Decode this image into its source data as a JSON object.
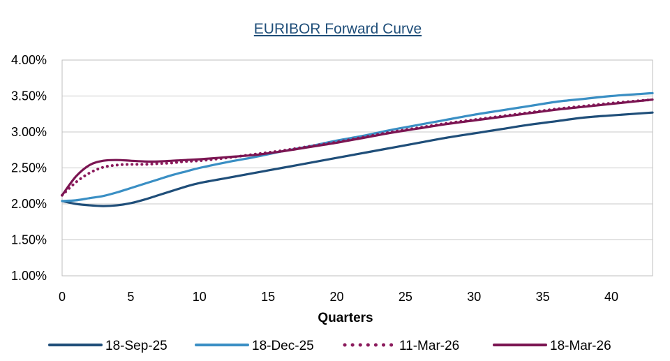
{
  "chart_data": {
    "type": "line",
    "title": "EURIBOR  Forward Curve ",
    "xlabel": "Quarters",
    "ylabel": "",
    "xlim": [
      0,
      43
    ],
    "ylim": [
      1.0,
      4.0
    ],
    "x_ticks": [
      0,
      5,
      10,
      15,
      20,
      25,
      30,
      35,
      40
    ],
    "x_tick_labels": [
      "0",
      "5",
      "10",
      "15",
      "20",
      "25",
      "30",
      "35",
      "40"
    ],
    "y_ticks": [
      1.0,
      1.5,
      2.0,
      2.5,
      3.0,
      3.5,
      4.0
    ],
    "y_tick_labels": [
      "1.00%",
      "1.50%",
      "2.00%",
      "2.50%",
      "3.00%",
      "3.50%",
      "4.00%"
    ],
    "grid": true,
    "legend_position": "bottom",
    "series": [
      {
        "name": "18-Sep-25",
        "color": "#1f4e79",
        "style": "solid",
        "x": [
          0,
          1,
          2,
          3,
          4,
          5,
          6,
          7,
          8,
          9,
          10,
          12,
          14,
          16,
          18,
          20,
          22,
          24,
          26,
          28,
          30,
          32,
          34,
          36,
          38,
          40,
          43
        ],
        "values": [
          2.04,
          2.0,
          1.98,
          1.97,
          1.98,
          2.01,
          2.06,
          2.12,
          2.18,
          2.24,
          2.29,
          2.36,
          2.43,
          2.5,
          2.57,
          2.64,
          2.71,
          2.78,
          2.85,
          2.92,
          2.98,
          3.04,
          3.1,
          3.15,
          3.2,
          3.23,
          3.27
        ]
      },
      {
        "name": "18-Dec-25",
        "color": "#3a8fc4",
        "style": "solid",
        "x": [
          0,
          1,
          2,
          3,
          4,
          5,
          6,
          7,
          8,
          9,
          10,
          12,
          14,
          16,
          18,
          20,
          22,
          24,
          26,
          28,
          30,
          32,
          34,
          36,
          38,
          40,
          43
        ],
        "values": [
          2.04,
          2.05,
          2.08,
          2.11,
          2.16,
          2.22,
          2.28,
          2.34,
          2.4,
          2.45,
          2.5,
          2.58,
          2.65,
          2.73,
          2.8,
          2.88,
          2.95,
          3.03,
          3.1,
          3.17,
          3.24,
          3.3,
          3.36,
          3.42,
          3.46,
          3.5,
          3.54
        ]
      },
      {
        "name": "11-Mar-26",
        "color": "#8b1a5c",
        "style": "dotted",
        "x": [
          0,
          1,
          2,
          3,
          4,
          5,
          6,
          7,
          8,
          9,
          10,
          12,
          14,
          16,
          18,
          20,
          22,
          24,
          26,
          28,
          30,
          32,
          34,
          36,
          38,
          40,
          43
        ],
        "values": [
          2.12,
          2.3,
          2.43,
          2.51,
          2.54,
          2.55,
          2.55,
          2.56,
          2.57,
          2.59,
          2.6,
          2.64,
          2.69,
          2.74,
          2.8,
          2.86,
          2.93,
          3.0,
          3.06,
          3.12,
          3.17,
          3.22,
          3.27,
          3.32,
          3.36,
          3.4,
          3.45
        ]
      },
      {
        "name": "18-Mar-26",
        "color": "#7b1552",
        "style": "solid",
        "x": [
          0,
          1,
          2,
          3,
          4,
          5,
          6,
          7,
          8,
          9,
          10,
          12,
          14,
          16,
          18,
          20,
          22,
          24,
          26,
          28,
          30,
          32,
          34,
          36,
          38,
          40,
          43
        ],
        "values": [
          2.12,
          2.38,
          2.54,
          2.6,
          2.61,
          2.6,
          2.59,
          2.59,
          2.6,
          2.61,
          2.62,
          2.65,
          2.68,
          2.73,
          2.79,
          2.85,
          2.92,
          2.99,
          3.05,
          3.11,
          3.16,
          3.21,
          3.26,
          3.31,
          3.35,
          3.39,
          3.45
        ]
      }
    ]
  }
}
